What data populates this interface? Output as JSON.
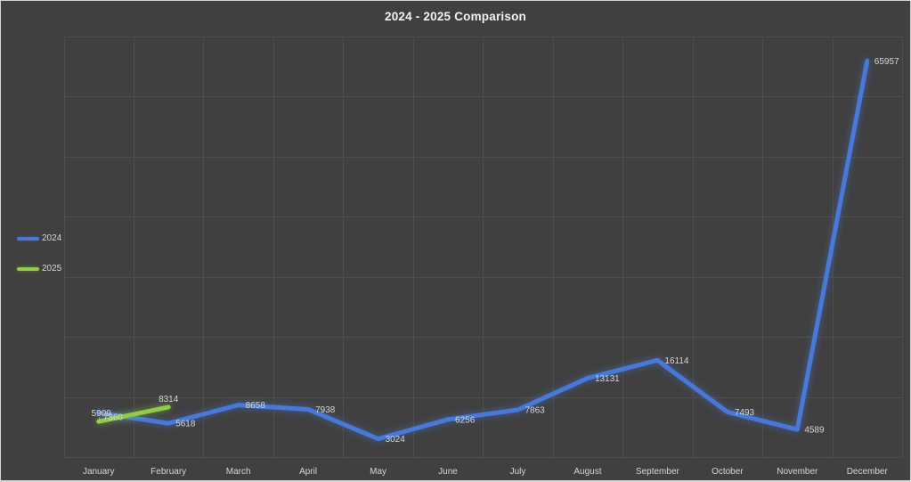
{
  "window": {
    "background": "#404040",
    "border_color": "#d4d4d4"
  },
  "chart_data": {
    "type": "line",
    "title": "2024 - 2025 Comparison",
    "categories": [
      "January",
      "February",
      "March",
      "April",
      "May",
      "June",
      "July",
      "August",
      "September",
      "October",
      "November",
      "December"
    ],
    "series": [
      {
        "name": "2024",
        "color": "#4878d8",
        "values": [
          7360,
          5618,
          8658,
          7938,
          3024,
          6256,
          7863,
          13131,
          16114,
          7493,
          4589,
          65957
        ]
      },
      {
        "name": "2025",
        "color": "#90cc45",
        "values": [
          5909,
          8314
        ]
      }
    ],
    "ylim": [
      0,
      70000
    ],
    "gridline_step": 10000,
    "grid": true,
    "y_axis_labels_visible": false,
    "legend_position": "left",
    "data_labels": true
  },
  "legend": {
    "items": [
      {
        "label": "2024",
        "color": "#4878d8"
      },
      {
        "label": "2025",
        "color": "#90cc45"
      }
    ]
  },
  "colors": {
    "background": "#404040",
    "gridline": "#4e4e4e",
    "title_text": "#f2f2f2",
    "axis_text": "#d6d6d6",
    "data_label_text": "#d6d6d6",
    "leader_line": "#bfbfbf",
    "series_2024": "#4878d8",
    "series_2025": "#90cc45"
  }
}
